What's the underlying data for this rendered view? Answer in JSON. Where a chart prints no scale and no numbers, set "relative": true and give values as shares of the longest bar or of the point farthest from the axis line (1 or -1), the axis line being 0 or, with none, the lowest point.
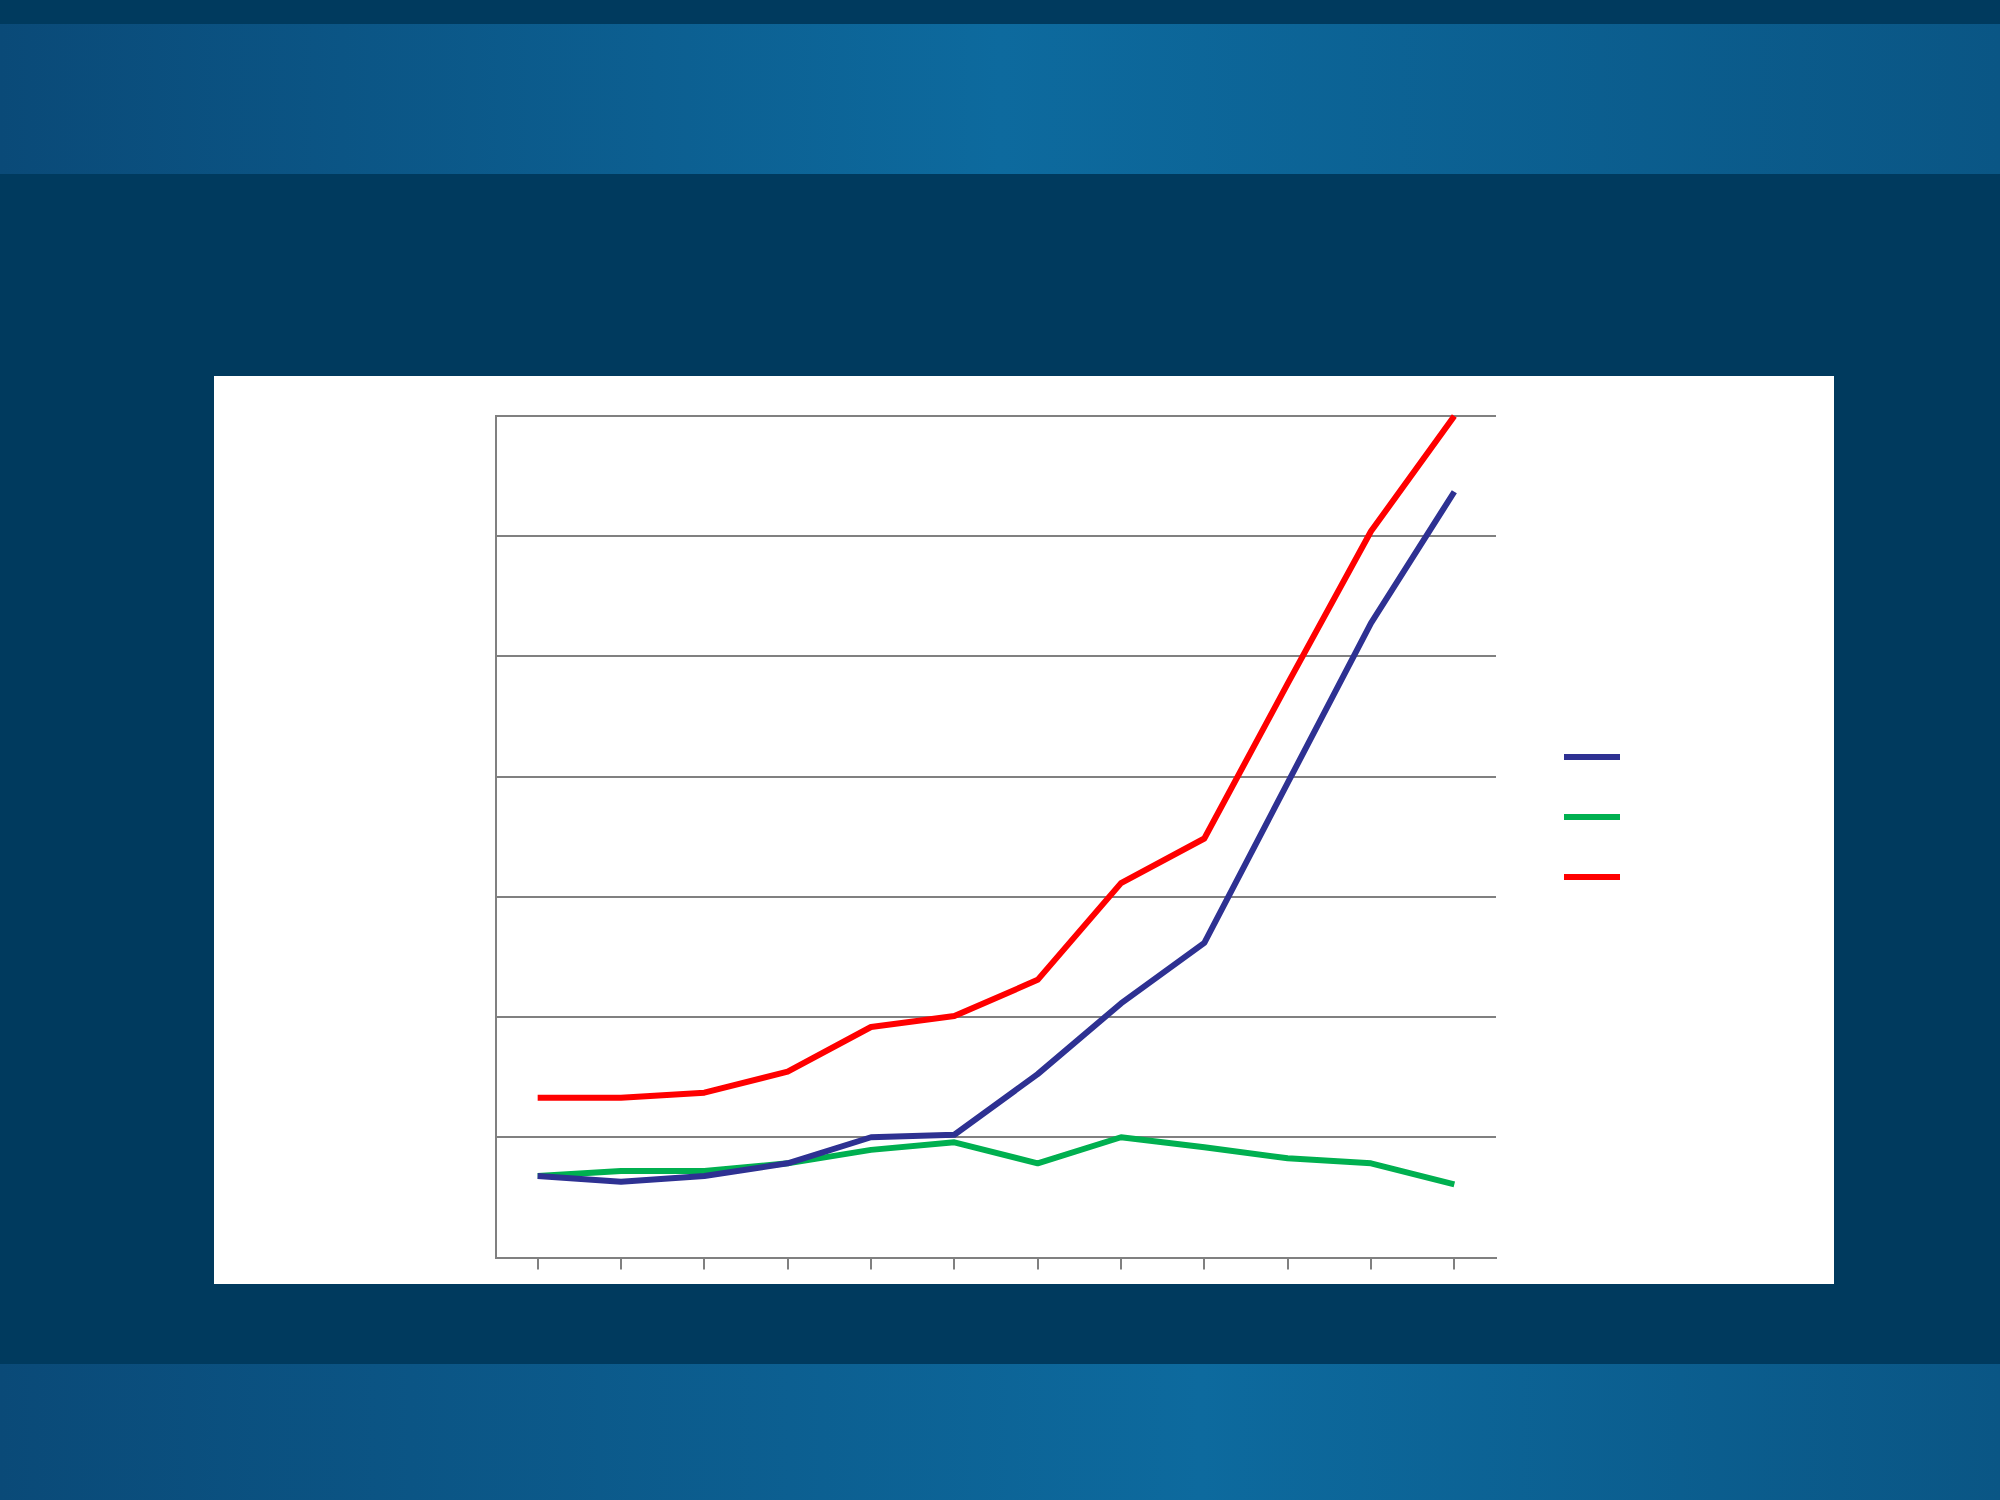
{
  "chart_data": {
    "type": "line",
    "relative": true,
    "grid": "y",
    "marker": "none",
    "line_style": "solid",
    "categories": [
      null,
      null,
      null,
      null,
      null,
      null,
      null,
      null,
      null,
      null,
      null,
      null
    ],
    "series": [
      {
        "color": "#2e3192",
        "values": [
          0.097,
          0.09,
          0.097,
          0.112,
          0.143,
          0.146,
          0.218,
          0.302,
          0.374,
          0.564,
          0.754,
          0.91
        ]
      },
      {
        "color": "#00b050",
        "values": [
          0.097,
          0.103,
          0.103,
          0.112,
          0.128,
          0.137,
          0.112,
          0.143,
          0.131,
          0.118,
          0.112,
          0.087
        ]
      },
      {
        "color": "#ff0000",
        "values": [
          0.19,
          0.19,
          0.196,
          0.221,
          0.274,
          0.287,
          0.33,
          0.445,
          0.498,
          0.682,
          0.863,
          1
        ]
      }
    ]
  }
}
